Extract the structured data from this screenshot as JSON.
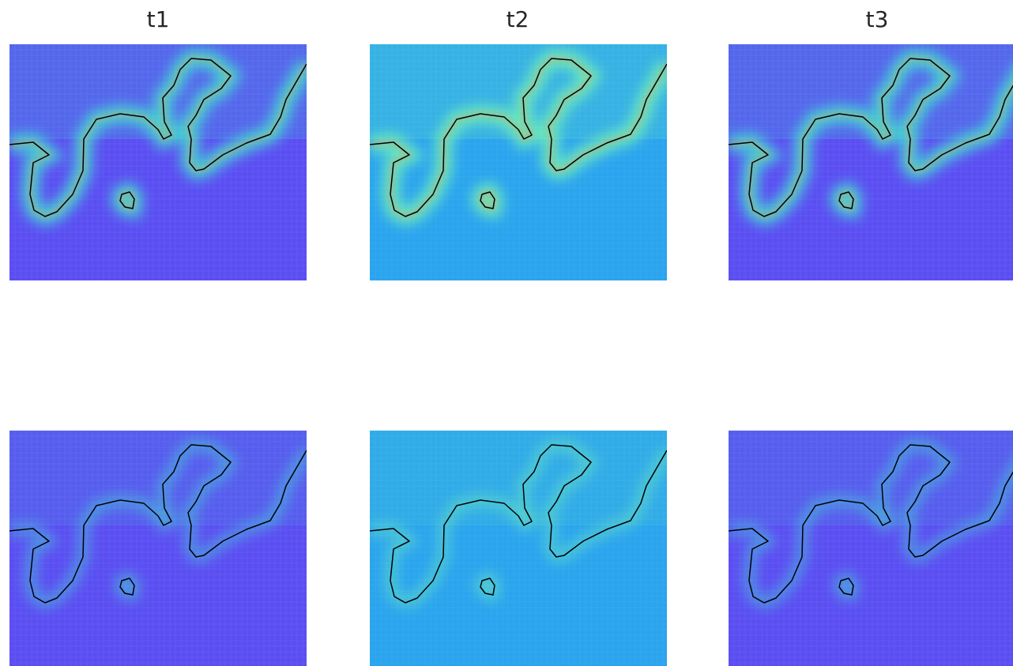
{
  "panels": [
    {
      "title": "t1"
    },
    {
      "title": "t2"
    },
    {
      "title": "t3"
    }
  ]
}
